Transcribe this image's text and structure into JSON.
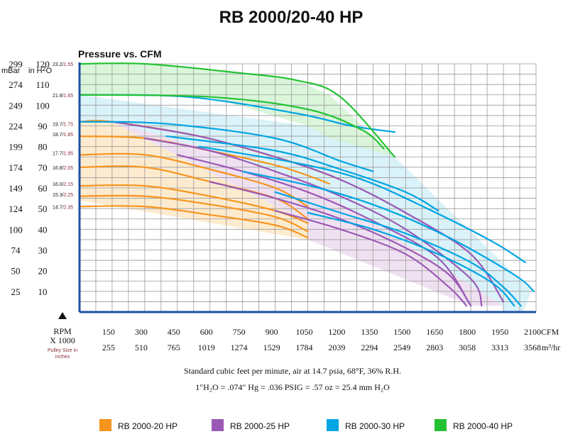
{
  "chart_data": {
    "type": "line",
    "title": "RB 2000/20-40 HP",
    "subtitle": "Pressure vs. CFM",
    "left_unit_label": "mBar",
    "right_unit_label": "in H",
    "right_unit_subscript": "2",
    "right_unit_tail": "O",
    "y_ticks_inh2o": [
      120,
      110,
      100,
      90,
      80,
      70,
      60,
      50,
      40,
      30,
      20,
      10
    ],
    "y_ticks_mbar": [
      299,
      274,
      249,
      224,
      199,
      174,
      149,
      124,
      100,
      74,
      50,
      25
    ],
    "x_ticks_cfm": [
      150,
      300,
      450,
      600,
      750,
      900,
      1050,
      1200,
      1350,
      1500,
      1650,
      1800,
      1950,
      2100
    ],
    "x_ticks_m3hr": [
      255,
      510,
      765,
      1019,
      1274,
      1529,
      1784,
      2039,
      2294,
      2549,
      2803,
      3058,
      3313,
      3568
    ],
    "x_unit_cfm": "CFM",
    "x_unit_m3hr": "m³/hr",
    "rpm_label": "RPM",
    "rpm_multiplier": "X 1000",
    "pulley_note": "Pulley Size in inches",
    "xlim": [
      0,
      2100
    ],
    "ylim": [
      0,
      120
    ],
    "grid": true,
    "curve_labels": [
      {
        "rpm": "23.2",
        "pulley": "1.55",
        "y": 120
      },
      {
        "rpm": "21.8",
        "pulley": "1.65",
        "y": 105
      },
      {
        "rpm": "19.7",
        "pulley": "1.75",
        "y": 91
      },
      {
        "rpm": "18.7",
        "pulley": "1.85",
        "y": 86
      },
      {
        "rpm": "17.7",
        "pulley": "1.95",
        "y": 77
      },
      {
        "rpm": "16.8",
        "pulley": "2.05",
        "y": 70
      },
      {
        "rpm": "16.0",
        "pulley": "2.15",
        "y": 62
      },
      {
        "rpm": "15.3",
        "pulley": "2.25",
        "y": 57
      },
      {
        "rpm": "14.7",
        "pulley": "2.35",
        "y": 51
      }
    ],
    "regions": [
      {
        "name": "RB 2000-20 HP",
        "color": "#fde7c7",
        "points": [
          [
            0,
            92
          ],
          [
            150,
            92
          ],
          [
            1050,
            43
          ],
          [
            1050,
            35
          ],
          [
            0,
            54
          ]
        ]
      },
      {
        "name": "RB 2000-25 HP",
        "color": "#ecdcef",
        "points": [
          [
            150,
            92
          ],
          [
            550,
            80
          ],
          [
            1050,
            63
          ],
          [
            1950,
            3
          ],
          [
            1800,
            3
          ],
          [
            1050,
            35
          ],
          [
            1050,
            43
          ]
        ]
      },
      {
        "name": "RB 2000-30 HP",
        "color": "#d4f0f8",
        "points": [
          [
            0,
            105
          ],
          [
            1050,
            90
          ],
          [
            1450,
            75
          ],
          [
            2080,
            10
          ],
          [
            2040,
            0
          ],
          [
            1950,
            0
          ],
          [
            1950,
            3
          ],
          [
            1050,
            63
          ],
          [
            550,
            80
          ],
          [
            150,
            92
          ],
          [
            0,
            92
          ]
        ]
      },
      {
        "name": "RB 2000-40 HP",
        "color": "#d3f3d4",
        "points": [
          [
            0,
            120
          ],
          [
            300,
            120
          ],
          [
            700,
            116
          ],
          [
            1000,
            112
          ],
          [
            1150,
            105
          ],
          [
            1450,
            75
          ],
          [
            1150,
            84
          ],
          [
            1050,
            90
          ],
          [
            600,
            104
          ],
          [
            0,
            105
          ]
        ]
      }
    ],
    "series": [
      {
        "color": "#f7941d",
        "points": [
          [
            0,
            92
          ],
          [
            150,
            92
          ],
          [
            550,
            85
          ],
          [
            900,
            75
          ],
          [
            1050,
            70
          ],
          [
            1200,
            64
          ]
        ]
      },
      {
        "color": "#f7941d",
        "points": [
          [
            0,
            85
          ],
          [
            300,
            84
          ],
          [
            600,
            78
          ],
          [
            900,
            71
          ],
          [
            1050,
            66
          ],
          [
            1150,
            62
          ]
        ]
      },
      {
        "color": "#f7941d",
        "points": [
          [
            0,
            76
          ],
          [
            300,
            76
          ],
          [
            600,
            69
          ],
          [
            900,
            60
          ],
          [
            1050,
            51
          ]
        ]
      },
      {
        "color": "#f7941d",
        "points": [
          [
            0,
            70
          ],
          [
            300,
            70
          ],
          [
            600,
            63
          ],
          [
            900,
            55
          ],
          [
            1050,
            45
          ]
        ]
      },
      {
        "color": "#f7941d",
        "points": [
          [
            0,
            61
          ],
          [
            300,
            61
          ],
          [
            600,
            56
          ],
          [
            900,
            49
          ],
          [
            1050,
            43
          ]
        ]
      },
      {
        "color": "#f7941d",
        "points": [
          [
            0,
            56
          ],
          [
            300,
            56
          ],
          [
            600,
            52
          ],
          [
            900,
            46
          ],
          [
            1050,
            39
          ]
        ]
      },
      {
        "color": "#f7941d",
        "points": [
          [
            0,
            51
          ],
          [
            300,
            51
          ],
          [
            600,
            47
          ],
          [
            900,
            42
          ],
          [
            1050,
            36
          ]
        ]
      },
      {
        "color": "#9b59b6",
        "points": [
          [
            150,
            92
          ],
          [
            550,
            85
          ],
          [
            900,
            75
          ],
          [
            1200,
            64
          ],
          [
            1500,
            48
          ],
          [
            1800,
            28
          ],
          [
            1950,
            5
          ]
        ]
      },
      {
        "color": "#9b59b6",
        "points": [
          [
            300,
            84
          ],
          [
            600,
            78
          ],
          [
            900,
            68
          ],
          [
            1200,
            56
          ],
          [
            1500,
            40
          ],
          [
            1800,
            16
          ],
          [
            1850,
            3
          ]
        ]
      },
      {
        "color": "#9b59b6",
        "points": [
          [
            450,
            76
          ],
          [
            750,
            68
          ],
          [
            1050,
            58
          ],
          [
            1350,
            44
          ],
          [
            1650,
            26
          ],
          [
            1800,
            3
          ]
        ]
      },
      {
        "color": "#9b59b6",
        "points": [
          [
            600,
            63
          ],
          [
            900,
            55
          ],
          [
            1200,
            45
          ],
          [
            1500,
            31
          ],
          [
            1700,
            18
          ],
          [
            1800,
            3
          ]
        ]
      },
      {
        "color": "#9b59b6",
        "points": [
          [
            900,
            49
          ],
          [
            1200,
            40
          ],
          [
            1500,
            28
          ],
          [
            1700,
            12
          ],
          [
            1780,
            3
          ]
        ]
      },
      {
        "color": "#00a5e3",
        "points": [
          [
            0,
            105
          ],
          [
            500,
            104
          ],
          [
            1000,
            96
          ],
          [
            1250,
            90
          ],
          [
            1450,
            87
          ]
        ]
      },
      {
        "color": "#00a5e3",
        "points": [
          [
            0,
            92
          ],
          [
            400,
            91
          ],
          [
            900,
            84
          ],
          [
            1200,
            73
          ],
          [
            1350,
            68
          ]
        ]
      },
      {
        "color": "#00a5e3",
        "points": [
          [
            400,
            85
          ],
          [
            900,
            78
          ],
          [
            1200,
            69
          ],
          [
            1500,
            58
          ],
          [
            1650,
            49
          ]
        ]
      },
      {
        "color": "#00a5e3",
        "points": [
          [
            550,
            80
          ],
          [
            1000,
            72
          ],
          [
            1300,
            64
          ],
          [
            1600,
            50
          ],
          [
            1900,
            34
          ],
          [
            2050,
            24
          ]
        ]
      },
      {
        "color": "#00a5e3",
        "points": [
          [
            750,
            68
          ],
          [
            1100,
            60
          ],
          [
            1400,
            50
          ],
          [
            1700,
            36
          ],
          [
            2000,
            18
          ],
          [
            2090,
            10
          ]
        ]
      },
      {
        "color": "#00a5e3",
        "points": [
          [
            900,
            58
          ],
          [
            1200,
            48
          ],
          [
            1500,
            38
          ],
          [
            1800,
            24
          ],
          [
            1950,
            12
          ],
          [
            2030,
            3
          ]
        ]
      },
      {
        "color": "#00a5e3",
        "points": [
          [
            1050,
            48
          ],
          [
            1350,
            40
          ],
          [
            1650,
            28
          ],
          [
            1900,
            14
          ],
          [
            2000,
            3
          ]
        ]
      },
      {
        "color": "#22c232",
        "points": [
          [
            0,
            120
          ],
          [
            300,
            120
          ],
          [
            700,
            116
          ],
          [
            1000,
            112
          ],
          [
            1200,
            104
          ],
          [
            1450,
            75
          ]
        ]
      },
      {
        "color": "#22c232",
        "points": [
          [
            0,
            105
          ],
          [
            600,
            104
          ],
          [
            1050,
            98
          ],
          [
            1300,
            88
          ],
          [
            1400,
            79
          ]
        ]
      }
    ],
    "footnote_1": "Standard cubic feet per minute, air at 14.7 psia, 68°F, 36% R.H.",
    "footnote_2": "1\"H₂O = .074\" Hg = .036 PSIG = .57 oz = 25.4 mm H₂O",
    "legend": [
      {
        "label": "RB 2000-20 HP",
        "color": "#f7941d"
      },
      {
        "label": "RB 2000-25 HP",
        "color": "#9b59b6"
      },
      {
        "label": "RB 2000-30 HP",
        "color": "#00a5e3"
      },
      {
        "label": "RB 2000-40 HP",
        "color": "#22c232"
      }
    ]
  }
}
